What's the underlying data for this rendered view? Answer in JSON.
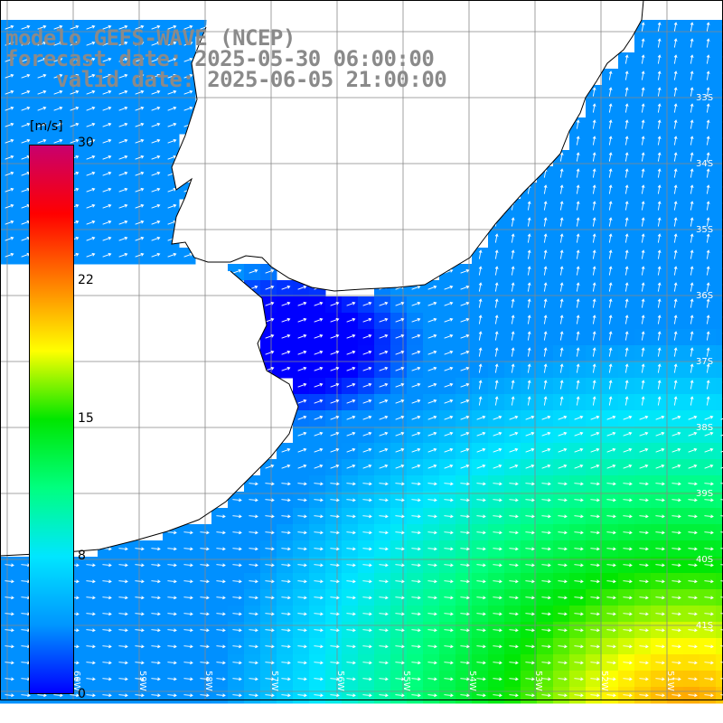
{
  "title": {
    "line1": "modelo GEFS-WAVE (NCEP)",
    "line2": "forecast date: 2025-05-30 06:00:00",
    "line3": "    valid date: 2025-06-05 21:00:00"
  },
  "legend": {
    "unit": "[m/s]",
    "ticks": [
      "30",
      "22",
      "15",
      "8",
      "0"
    ],
    "colors": [
      "#0000ff",
      "#0096ff",
      "#00e6ff",
      "#00ff7f",
      "#00e600",
      "#ffff00",
      "#ff7f00",
      "#ff0000",
      "#c8006e"
    ]
  },
  "map": {
    "land_color": "#ffffff",
    "grid_color": "#888888",
    "lat_labels": [
      "33S",
      "34S",
      "35S",
      "36S",
      "37S",
      "38S",
      "39S",
      "40S",
      "41S"
    ],
    "lon_labels": [
      "60W",
      "59W",
      "58W",
      "57W",
      "56W",
      "55W",
      "54W",
      "53W",
      "52W",
      "51W"
    ],
    "field": "wind speed (m/s) with direction arrows"
  }
}
